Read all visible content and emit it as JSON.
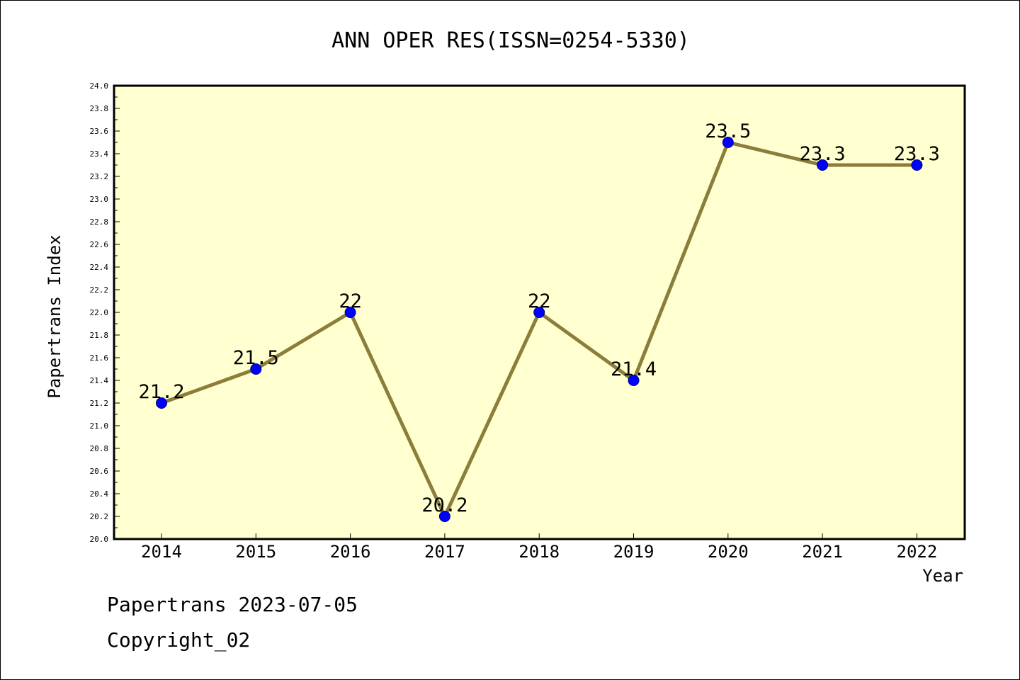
{
  "chart_data": {
    "type": "line",
    "title": "ANN OPER RES(ISSN=0254-5330)",
    "xlabel": "Year",
    "ylabel": "Papertrans Index",
    "categories": [
      "2014",
      "2015",
      "2016",
      "2017",
      "2018",
      "2019",
      "2020",
      "2021",
      "2022"
    ],
    "values": [
      21.2,
      21.5,
      22,
      20.2,
      22,
      21.4,
      23.5,
      23.3,
      23.3
    ],
    "data_labels": [
      "21.2",
      "21.5",
      "22",
      "20.2",
      "22",
      "21.4",
      "23.5",
      "23.3",
      "23.3"
    ],
    "ylim": [
      20.0,
      24.0
    ],
    "y_ticks": [
      "20.0",
      "20.2",
      "20.4",
      "20.6",
      "20.8",
      "21.0",
      "21.2",
      "21.4",
      "21.6",
      "21.8",
      "22.0",
      "22.2",
      "22.4",
      "22.6",
      "22.8",
      "23.0",
      "23.2",
      "23.4",
      "23.6",
      "23.8",
      "24.0"
    ],
    "grid": false,
    "legend": "none",
    "colors": {
      "plot_background": "#FFFFD0",
      "line": "#8B7D3A",
      "marker": "#0000FF"
    }
  },
  "footer": {
    "line1": "Papertrans 2023-07-05",
    "line2": "Copyright_02"
  }
}
